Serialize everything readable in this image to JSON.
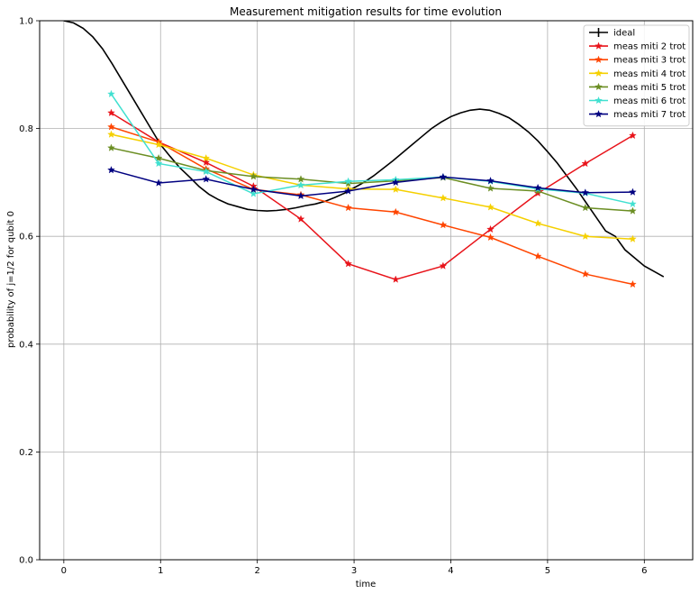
{
  "chart_data": {
    "type": "line",
    "title": "Measurement mitigation results for time evolution",
    "xlabel": "time",
    "ylabel": "probability of j=1/2 for qubit 0",
    "xlim": [
      -0.25,
      6.5
    ],
    "ylim": [
      0.0,
      1.0
    ],
    "xticks": [
      0,
      1,
      2,
      3,
      4,
      5,
      6
    ],
    "yticks": [
      0.0,
      0.2,
      0.4,
      0.6,
      0.8,
      1.0
    ],
    "xtick_labels": [
      "0",
      "1",
      "2",
      "3",
      "4",
      "5",
      "6"
    ],
    "ytick_labels": [
      "0.0",
      "0.2",
      "0.4",
      "0.6",
      "0.8",
      "1.0"
    ],
    "grid": true,
    "legend_position": "top-right",
    "ideal": {
      "name": "ideal",
      "color": "#000000",
      "x": [
        0.0,
        0.1,
        0.2,
        0.3,
        0.4,
        0.5,
        0.6,
        0.7,
        0.8,
        0.9,
        1.0,
        1.1,
        1.2,
        1.3,
        1.4,
        1.5,
        1.6,
        1.7,
        1.8,
        1.9,
        2.0,
        2.1,
        2.2,
        2.3,
        2.4,
        2.5,
        2.6,
        2.7,
        2.8,
        2.9,
        3.0,
        3.1,
        3.2,
        3.3,
        3.4,
        3.5,
        3.6,
        3.7,
        3.8,
        3.9,
        4.0,
        4.1,
        4.2,
        4.3,
        4.4,
        4.5,
        4.6,
        4.7,
        4.8,
        4.9,
        5.0,
        5.1,
        5.2,
        5.3,
        5.4,
        5.5,
        5.6,
        5.7,
        5.8,
        5.9,
        6.0,
        6.1,
        6.2
      ],
      "y": [
        1.0,
        0.996,
        0.986,
        0.97,
        0.948,
        0.92,
        0.89,
        0.86,
        0.83,
        0.8,
        0.77,
        0.748,
        0.727,
        0.71,
        0.692,
        0.678,
        0.668,
        0.66,
        0.655,
        0.65,
        0.648,
        0.647,
        0.648,
        0.65,
        0.653,
        0.657,
        0.66,
        0.665,
        0.672,
        0.68,
        0.69,
        0.7,
        0.712,
        0.726,
        0.74,
        0.755,
        0.77,
        0.785,
        0.8,
        0.812,
        0.822,
        0.829,
        0.834,
        0.836,
        0.834,
        0.828,
        0.82,
        0.808,
        0.794,
        0.777,
        0.757,
        0.736,
        0.712,
        0.688,
        0.662,
        0.636,
        0.61,
        0.6,
        0.575,
        0.56,
        0.545,
        0.535,
        0.525
      ]
    },
    "x": [
      0.49,
      0.98,
      1.47,
      1.96,
      2.45,
      2.94,
      3.43,
      3.92,
      4.41,
      4.9,
      5.39,
      5.88
    ],
    "series": [
      {
        "name": "meas miti 2 trot",
        "color": "#e8131a",
        "values": [
          0.829,
          0.775,
          0.737,
          0.693,
          0.632,
          0.549,
          0.52,
          0.545,
          0.613,
          0.68,
          0.735,
          0.787
        ]
      },
      {
        "name": "meas miti 3 trot",
        "color": "#ff4500",
        "values": [
          0.803,
          0.775,
          0.725,
          0.687,
          0.677,
          0.653,
          0.645,
          0.621,
          0.598,
          0.563,
          0.53,
          0.511
        ]
      },
      {
        "name": "meas miti 4 trot",
        "color": "#f5d000",
        "values": [
          0.789,
          0.77,
          0.745,
          0.714,
          0.695,
          0.688,
          0.687,
          0.671,
          0.654,
          0.624,
          0.6,
          0.595
        ]
      },
      {
        "name": "meas miti 5 trot",
        "color": "#6b8e23",
        "values": [
          0.764,
          0.745,
          0.722,
          0.711,
          0.706,
          0.698,
          0.703,
          0.709,
          0.689,
          0.684,
          0.653,
          0.647
        ]
      },
      {
        "name": "meas miti 6 trot",
        "color": "#40e0d0",
        "values": [
          0.864,
          0.735,
          0.72,
          0.679,
          0.695,
          0.702,
          0.705,
          0.71,
          0.702,
          0.688,
          0.68,
          0.66
        ]
      },
      {
        "name": "meas miti 7 trot",
        "color": "#000080",
        "values": [
          0.723,
          0.699,
          0.706,
          0.687,
          0.675,
          0.684,
          0.7,
          0.71,
          0.703,
          0.69,
          0.681,
          0.682
        ]
      }
    ]
  }
}
